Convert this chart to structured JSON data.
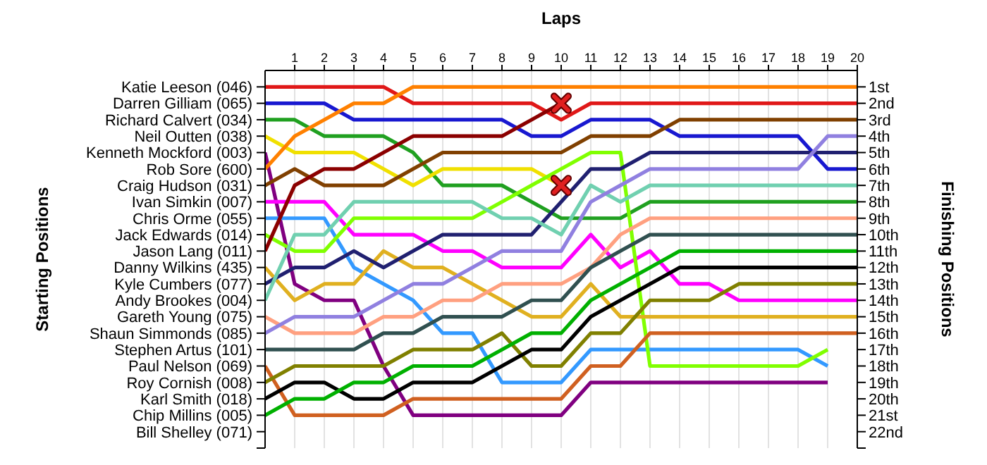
{
  "chart_data": {
    "type": "line",
    "xlabel": "Laps",
    "ylabel": "Finishing Positions",
    "x": [
      0,
      1,
      2,
      3,
      4,
      5,
      6,
      7,
      8,
      9,
      10,
      11,
      12,
      13,
      14,
      15,
      16,
      17,
      18,
      19,
      20
    ],
    "xlim": [
      0,
      20
    ],
    "xticks": [
      1,
      2,
      3,
      4,
      5,
      6,
      7,
      8,
      9,
      10,
      11,
      12,
      13,
      14,
      15,
      16,
      17,
      18,
      19,
      20
    ],
    "ylim": [
      23,
      0
    ],
    "annotations": [
      "Katie Leeson (046)",
      "Darren Gilliam (065)",
      "Richard Calvert (034)",
      "Neil Outten (038)",
      "Kenneth Mockford (003)",
      "Rob Sore (600)",
      "Craig Hudson (031)",
      "Ivan Simkin (007)",
      "Chris Orme (055)",
      "Jack Edwards (014)",
      "Jason Lang (011)",
      "Danny Wilkins (435)",
      "Kyle Cumbers (077)",
      "Andy Brookes (004)",
      "Gareth Young (075)",
      "Shaun Simmonds (085)",
      "Stephen Artus (101)",
      "Paul Nelson (069)",
      "Roy Cornish (008)",
      "Karl Smith (018)",
      "Chip Millins (005)",
      "Bill Shelley (071)",
      "Starting Positions"
    ],
    "yticks": [
      {
        "value": 1,
        "label": "1st"
      },
      {
        "value": 2,
        "label": "2nd"
      },
      {
        "value": 3,
        "label": "3rd"
      },
      {
        "value": 4,
        "label": "4th"
      },
      {
        "value": 5,
        "label": "5th"
      },
      {
        "value": 6,
        "label": "6th"
      },
      {
        "value": 7,
        "label": "7th"
      },
      {
        "value": 8,
        "label": "8th"
      },
      {
        "value": 9,
        "label": "9th"
      },
      {
        "value": 10,
        "label": "10th"
      },
      {
        "value": 11,
        "label": "11th"
      },
      {
        "value": 12,
        "label": "12th"
      },
      {
        "value": 13,
        "label": "13th"
      },
      {
        "value": 14,
        "label": "14th"
      },
      {
        "value": 15,
        "label": "15th"
      },
      {
        "value": 16,
        "label": "16th"
      },
      {
        "value": 17,
        "label": "17th"
      },
      {
        "value": 18,
        "label": "18th"
      },
      {
        "value": 19,
        "label": "19th"
      },
      {
        "value": 20,
        "label": "20th"
      },
      {
        "value": 21,
        "label": "21st"
      },
      {
        "value": 22,
        "label": "22nd"
      },
      {
        "value": 23,
        "label": null
      }
    ],
    "grid": "x",
    "marker": "none",
    "line_style": "solid",
    "series": [
      {
        "color": "#e01818",
        "values": [
          1,
          1,
          1,
          1,
          1,
          2,
          2,
          2,
          2,
          2,
          3,
          2,
          2,
          2,
          2,
          2,
          2,
          2,
          2,
          2,
          2
        ]
      },
      {
        "color": "#1818d0",
        "values": [
          2,
          2,
          2,
          3,
          3,
          3,
          3,
          3,
          3,
          4,
          4,
          3,
          3,
          3,
          4,
          4,
          4,
          4,
          4,
          6,
          6
        ]
      },
      {
        "color": "#20a020",
        "values": [
          3,
          3,
          4,
          4,
          4,
          5,
          7,
          7,
          7,
          8,
          9,
          9,
          9,
          8,
          8,
          8,
          8,
          8,
          8,
          8,
          8
        ]
      },
      {
        "color": "#f0e000",
        "values": [
          4,
          5,
          5,
          5,
          6,
          7,
          6,
          6,
          6,
          6,
          7,
          null,
          null,
          null,
          null,
          null,
          null,
          null,
          null,
          null,
          null
        ]
      },
      {
        "color": "#800080",
        "values": [
          5,
          13,
          14,
          14,
          18,
          21,
          21,
          21,
          21,
          21,
          21,
          19,
          19,
          19,
          19,
          19,
          19,
          19,
          19,
          19,
          null
        ]
      },
      {
        "color": "#ff8000",
        "values": [
          6,
          4,
          3,
          2,
          2,
          1,
          1,
          1,
          1,
          1,
          1,
          1,
          1,
          1,
          1,
          1,
          1,
          1,
          1,
          1,
          1
        ]
      },
      {
        "color": "#804000",
        "values": [
          7,
          6,
          7,
          7,
          7,
          6,
          5,
          5,
          5,
          5,
          5,
          4,
          4,
          4,
          3,
          3,
          3,
          3,
          3,
          3,
          3
        ]
      },
      {
        "color": "#ff00ff",
        "values": [
          8,
          8,
          8,
          10,
          10,
          10,
          11,
          11,
          12,
          12,
          12,
          10,
          12,
          11,
          13,
          13,
          14,
          14,
          14,
          14,
          14
        ]
      },
      {
        "color": "#3399ff",
        "values": [
          9,
          9,
          9,
          12,
          13,
          14,
          16,
          16,
          19,
          19,
          19,
          17,
          17,
          17,
          17,
          17,
          17,
          17,
          17,
          18,
          null
        ]
      },
      {
        "color": "#80ff00",
        "values": [
          10,
          11,
          11,
          9,
          9,
          9,
          9,
          9,
          8,
          7,
          6,
          5,
          5,
          18,
          18,
          18,
          18,
          18,
          18,
          17,
          null
        ]
      },
      {
        "color": "#8b0000",
        "values": [
          11,
          7,
          6,
          6,
          5,
          4,
          4,
          4,
          4,
          3,
          2,
          null,
          null,
          null,
          null,
          null,
          null,
          null,
          null,
          null,
          null
        ]
      },
      {
        "color": "#e0b020",
        "values": [
          12,
          14,
          13,
          13,
          11,
          12,
          12,
          13,
          14,
          15,
          15,
          13,
          15,
          15,
          15,
          15,
          15,
          15,
          15,
          15,
          15
        ]
      },
      {
        "color": "#202070",
        "values": [
          13,
          12,
          12,
          11,
          12,
          11,
          10,
          10,
          10,
          10,
          8,
          6,
          6,
          5,
          5,
          5,
          5,
          5,
          5,
          5,
          5
        ]
      },
      {
        "color": "#70d0b0",
        "values": [
          14,
          10,
          10,
          8,
          8,
          8,
          8,
          8,
          9,
          9,
          10,
          7,
          8,
          7,
          7,
          7,
          7,
          7,
          7,
          7,
          7
        ]
      },
      {
        "color": "#ffa080",
        "values": [
          15,
          16,
          16,
          16,
          15,
          15,
          14,
          14,
          13,
          13,
          13,
          12,
          10,
          9,
          9,
          9,
          9,
          9,
          9,
          9,
          9
        ]
      },
      {
        "color": "#9080e0",
        "values": [
          16,
          15,
          15,
          15,
          14,
          13,
          13,
          12,
          11,
          11,
          11,
          8,
          7,
          6,
          6,
          6,
          6,
          6,
          6,
          4,
          4
        ]
      },
      {
        "color": "#305050",
        "values": [
          17,
          17,
          17,
          17,
          16,
          16,
          15,
          15,
          15,
          14,
          14,
          12,
          11,
          10,
          10,
          10,
          10,
          10,
          10,
          10,
          10
        ]
      },
      {
        "color": "#d06020",
        "values": [
          18,
          21,
          21,
          21,
          21,
          20,
          20,
          20,
          20,
          20,
          20,
          18,
          18,
          16,
          16,
          16,
          16,
          16,
          16,
          16,
          16
        ]
      },
      {
        "color": "#808000",
        "values": [
          19,
          18,
          18,
          18,
          18,
          17,
          17,
          17,
          16,
          18,
          18,
          16,
          16,
          14,
          14,
          14,
          13,
          13,
          13,
          13,
          13
        ]
      },
      {
        "color": "#000000",
        "values": [
          20,
          19,
          19,
          20,
          20,
          19,
          19,
          19,
          18,
          17,
          17,
          15,
          14,
          13,
          12,
          12,
          12,
          12,
          12,
          12,
          12
        ]
      },
      {
        "color": "#00b000",
        "values": [
          21,
          20,
          20,
          19,
          19,
          18,
          18,
          18,
          17,
          16,
          16,
          14,
          13,
          12,
          11,
          11,
          11,
          11,
          11,
          11,
          11
        ]
      },
      {
        "type": "scatter",
        "marker": "cross",
        "color": "#e02020",
        "x": [
          10,
          10
        ],
        "values": [
          2,
          7
        ]
      }
    ]
  }
}
